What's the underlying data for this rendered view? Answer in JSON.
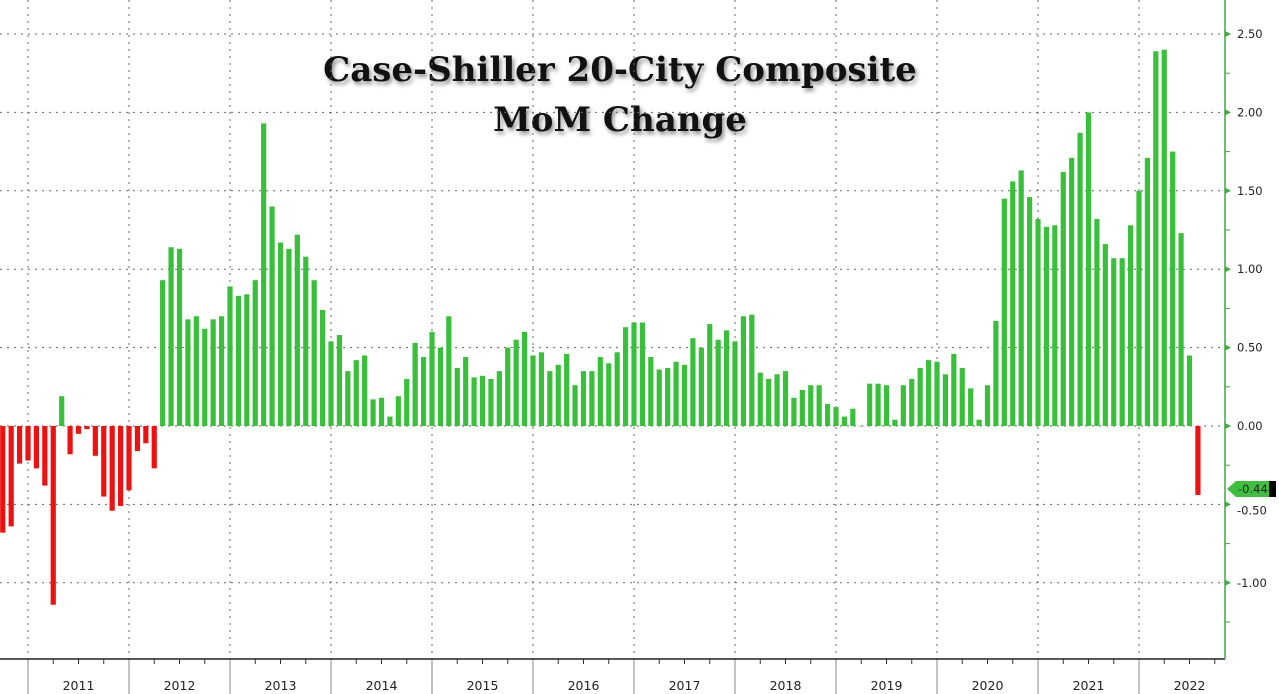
{
  "chart_data": {
    "type": "bar",
    "title": "Case-Shiller 20-City Composite",
    "subtitle": "MoM Change",
    "xlabel": "",
    "ylabel": "",
    "start_month": "2010-10",
    "end_month": "2022-08",
    "ylim": [
      -1.5,
      2.72
    ],
    "yticks": [
      "-1.00",
      "-0.50",
      "0.00",
      "0.50",
      "1.00",
      "1.50",
      "2.00",
      "2.50"
    ],
    "ytick_values": [
      -1.0,
      -0.5,
      0.0,
      0.5,
      1.0,
      1.5,
      2.0,
      2.5
    ],
    "year_labels": [
      "2011",
      "2012",
      "2013",
      "2014",
      "2015",
      "2016",
      "2017",
      "2018",
      "2019",
      "2020",
      "2021",
      "2022"
    ],
    "grid": true,
    "positive_color": "#39c03a",
    "negative_color": "#ee1111",
    "last_value_label": "-0.44",
    "values": [
      -0.68,
      -0.64,
      -0.24,
      -0.22,
      -0.27,
      -0.38,
      -1.14,
      0.19,
      -0.18,
      -0.05,
      -0.02,
      -0.19,
      -0.45,
      -0.54,
      -0.51,
      -0.41,
      -0.16,
      -0.11,
      -0.27,
      0.93,
      1.14,
      1.13,
      0.68,
      0.7,
      0.62,
      0.68,
      0.7,
      0.89,
      0.83,
      0.84,
      0.93,
      1.93,
      1.4,
      1.17,
      1.13,
      1.22,
      1.08,
      0.93,
      0.74,
      0.54,
      0.58,
      0.35,
      0.42,
      0.45,
      0.17,
      0.18,
      0.06,
      0.19,
      0.3,
      0.53,
      0.44,
      0.6,
      0.5,
      0.7,
      0.37,
      0.44,
      0.31,
      0.32,
      0.3,
      0.35,
      0.5,
      0.55,
      0.6,
      0.45,
      0.47,
      0.35,
      0.39,
      0.46,
      0.26,
      0.35,
      0.35,
      0.44,
      0.4,
      0.47,
      0.63,
      0.66,
      0.66,
      0.44,
      0.36,
      0.37,
      0.41,
      0.39,
      0.56,
      0.5,
      0.65,
      0.55,
      0.61,
      0.54,
      0.7,
      0.71,
      0.34,
      0.3,
      0.33,
      0.35,
      0.18,
      0.23,
      0.26,
      0.26,
      0.14,
      0.12,
      0.06,
      0.11,
      0.0,
      0.27,
      0.27,
      0.26,
      0.04,
      0.26,
      0.3,
      0.37,
      0.42,
      0.41,
      0.33,
      0.46,
      0.37,
      0.24,
      0.04,
      0.26,
      0.67,
      1.45,
      1.56,
      1.63,
      1.46,
      1.32,
      1.27,
      1.28,
      1.62,
      1.71,
      1.87,
      2.0,
      1.32,
      1.16,
      1.07,
      1.07,
      1.28,
      1.5,
      1.71,
      2.39,
      2.4,
      1.75,
      1.23,
      0.45,
      -0.44
    ]
  }
}
